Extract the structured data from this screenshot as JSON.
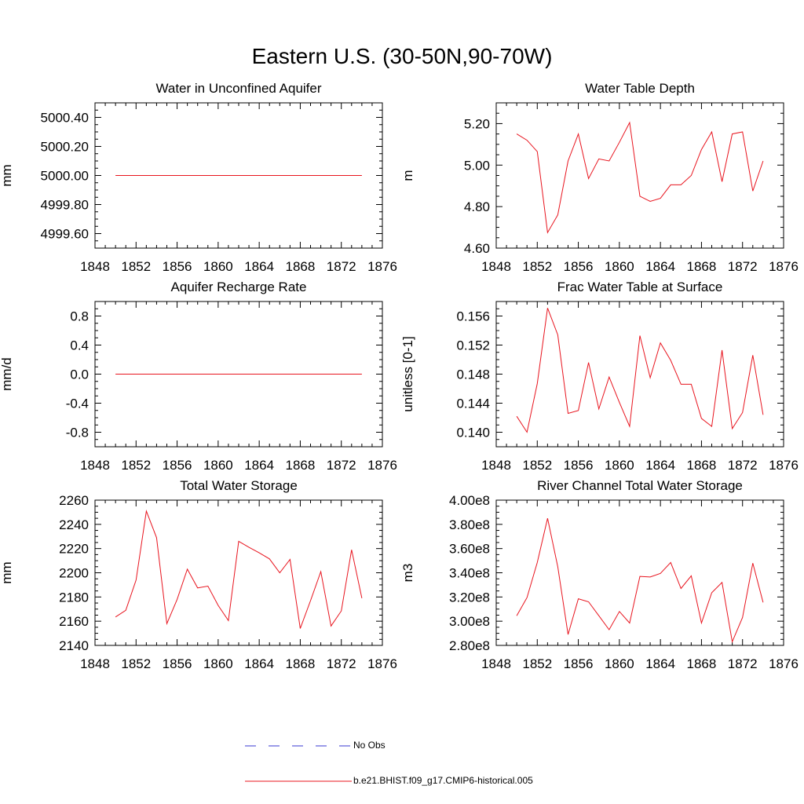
{
  "title": "Eastern U.S. (30-50N,90-70W)",
  "colors": {
    "model_line": "#e8141e",
    "obs_line": "#3a3ad0",
    "axis": "#000000"
  },
  "legend": {
    "obs_label": "No Obs",
    "model_label": "b.e21.BHIST.f09_g17.CMIP6-historical.005"
  },
  "chart_data": [
    {
      "type": "line",
      "title": "Water in Unconfined Aquifer",
      "ylabel": "mm",
      "xlim": [
        1848,
        1876
      ],
      "ylim": [
        4999.5,
        5000.5
      ],
      "xticks": [
        1848,
        1852,
        1856,
        1860,
        1864,
        1868,
        1872,
        1876
      ],
      "yticks": [
        4999.6,
        4999.8,
        5000.0,
        5000.2,
        5000.4
      ],
      "ytick_labels": [
        "4999.60",
        "4999.80",
        "5000.00",
        "5000.20",
        "5000.40"
      ],
      "x": [
        1850,
        1851,
        1852,
        1853,
        1854,
        1855,
        1856,
        1857,
        1858,
        1859,
        1860,
        1861,
        1862,
        1863,
        1864,
        1865,
        1866,
        1867,
        1868,
        1869,
        1870,
        1871,
        1872,
        1873,
        1874
      ],
      "y": [
        5000,
        5000,
        5000,
        5000,
        5000,
        5000,
        5000,
        5000,
        5000,
        5000,
        5000,
        5000,
        5000,
        5000,
        5000,
        5000,
        5000,
        5000,
        5000,
        5000,
        5000,
        5000,
        5000,
        5000,
        5000
      ]
    },
    {
      "type": "line",
      "title": "Water Table Depth",
      "ylabel": "m",
      "xlim": [
        1848,
        1876
      ],
      "ylim": [
        4.6,
        5.3
      ],
      "xticks": [
        1848,
        1852,
        1856,
        1860,
        1864,
        1868,
        1872,
        1876
      ],
      "yticks": [
        4.6,
        4.8,
        5.0,
        5.2
      ],
      "ytick_labels": [
        "4.60",
        "4.80",
        "5.00",
        "5.20"
      ],
      "x": [
        1850,
        1851,
        1852,
        1853,
        1854,
        1855,
        1856,
        1857,
        1858,
        1859,
        1860,
        1861,
        1862,
        1863,
        1864,
        1865,
        1866,
        1867,
        1868,
        1869,
        1870,
        1871,
        1872,
        1873,
        1874
      ],
      "y": [
        5.15,
        5.12,
        5.065,
        4.675,
        4.76,
        5.02,
        5.15,
        4.935,
        5.03,
        5.02,
        5.11,
        5.205,
        4.85,
        4.825,
        4.84,
        4.905,
        4.905,
        4.95,
        5.075,
        5.16,
        4.92,
        5.15,
        5.16,
        4.875,
        5.02
      ]
    },
    {
      "type": "line",
      "title": "Aquifer Recharge Rate",
      "ylabel": "mm/d",
      "xlim": [
        1848,
        1876
      ],
      "ylim": [
        -1.0,
        1.0
      ],
      "xticks": [
        1848,
        1852,
        1856,
        1860,
        1864,
        1868,
        1872,
        1876
      ],
      "yticks": [
        -0.8,
        -0.4,
        0.0,
        0.4,
        0.8
      ],
      "ytick_labels": [
        "-0.8",
        "-0.4",
        "0.0",
        "0.4",
        "0.8"
      ],
      "x": [
        1850,
        1851,
        1852,
        1853,
        1854,
        1855,
        1856,
        1857,
        1858,
        1859,
        1860,
        1861,
        1862,
        1863,
        1864,
        1865,
        1866,
        1867,
        1868,
        1869,
        1870,
        1871,
        1872,
        1873,
        1874
      ],
      "y": [
        0,
        0,
        0,
        0,
        0,
        0,
        0,
        0,
        0,
        0,
        0,
        0,
        0,
        0,
        0,
        0,
        0,
        0,
        0,
        0,
        0,
        0,
        0,
        0,
        0
      ]
    },
    {
      "type": "line",
      "title": "Frac Water Table at Surface",
      "ylabel": "unitless [0-1]",
      "xlim": [
        1848,
        1876
      ],
      "ylim": [
        0.138,
        0.158
      ],
      "xticks": [
        1848,
        1852,
        1856,
        1860,
        1864,
        1868,
        1872,
        1876
      ],
      "yticks": [
        0.14,
        0.144,
        0.148,
        0.152,
        0.156
      ],
      "ytick_labels": [
        "0.140",
        "0.144",
        "0.148",
        "0.152",
        "0.156"
      ],
      "x": [
        1850,
        1851,
        1852,
        1853,
        1854,
        1855,
        1856,
        1857,
        1858,
        1859,
        1860,
        1861,
        1862,
        1863,
        1864,
        1865,
        1866,
        1867,
        1868,
        1869,
        1870,
        1871,
        1872,
        1873,
        1874
      ],
      "y": [
        0.1422,
        0.14,
        0.1467,
        0.1571,
        0.1534,
        0.1426,
        0.143,
        0.1496,
        0.1432,
        0.1476,
        0.1441,
        0.1408,
        0.1533,
        0.1475,
        0.1523,
        0.1499,
        0.1466,
        0.1466,
        0.1419,
        0.1408,
        0.1513,
        0.1405,
        0.1427,
        0.1506,
        0.1424
      ]
    },
    {
      "type": "line",
      "title": "Total Water Storage",
      "ylabel": "mm",
      "xlim": [
        1848,
        1876
      ],
      "ylim": [
        2140,
        2260
      ],
      "xticks": [
        1848,
        1852,
        1856,
        1860,
        1864,
        1868,
        1872,
        1876
      ],
      "yticks": [
        2140,
        2160,
        2180,
        2200,
        2220,
        2240,
        2260
      ],
      "ytick_labels": [
        "2140",
        "2160",
        "2180",
        "2200",
        "2220",
        "2240",
        "2260"
      ],
      "x": [
        1850,
        1851,
        1852,
        1853,
        1854,
        1855,
        1856,
        1857,
        1858,
        1859,
        1860,
        1861,
        1862,
        1863,
        1864,
        1865,
        1866,
        1867,
        1868,
        1869,
        1870,
        1871,
        1872,
        1873,
        1874
      ],
      "y": [
        2163.5,
        2169,
        2194,
        2251,
        2229,
        2158,
        2178,
        2203,
        2187.5,
        2189,
        2173,
        2160.5,
        2226,
        2221,
        2216.5,
        2211.5,
        2200,
        2211,
        2154,
        2177,
        2201,
        2156,
        2168.5,
        2219,
        2179
      ]
    },
    {
      "type": "line",
      "title": "River Channel Total Water Storage",
      "ylabel": "m3",
      "xlim": [
        1848,
        1876
      ],
      "ylim": [
        280000000,
        400000000
      ],
      "xticks": [
        1848,
        1852,
        1856,
        1860,
        1864,
        1868,
        1872,
        1876
      ],
      "yticks": [
        280000000,
        300000000,
        320000000,
        340000000,
        360000000,
        380000000,
        400000000
      ],
      "ytick_labels": [
        "2.80e8",
        "3.00e8",
        "3.20e8",
        "3.40e8",
        "3.60e8",
        "3.80e8",
        "4.00e8"
      ],
      "x": [
        1850,
        1851,
        1852,
        1853,
        1854,
        1855,
        1856,
        1857,
        1858,
        1859,
        1860,
        1861,
        1862,
        1863,
        1864,
        1865,
        1866,
        1867,
        1868,
        1869,
        1870,
        1871,
        1872,
        1873,
        1874
      ],
      "y": [
        304500000,
        319500000,
        348500000,
        385000000,
        345000000,
        289000000,
        318500000,
        316000000,
        304500000,
        293000000,
        308000000,
        298500000,
        337000000,
        336500000,
        339500000,
        348500000,
        327000000,
        337500000,
        298500000,
        323500000,
        332000000,
        283000000,
        303000000,
        348000000,
        315500000
      ]
    }
  ]
}
